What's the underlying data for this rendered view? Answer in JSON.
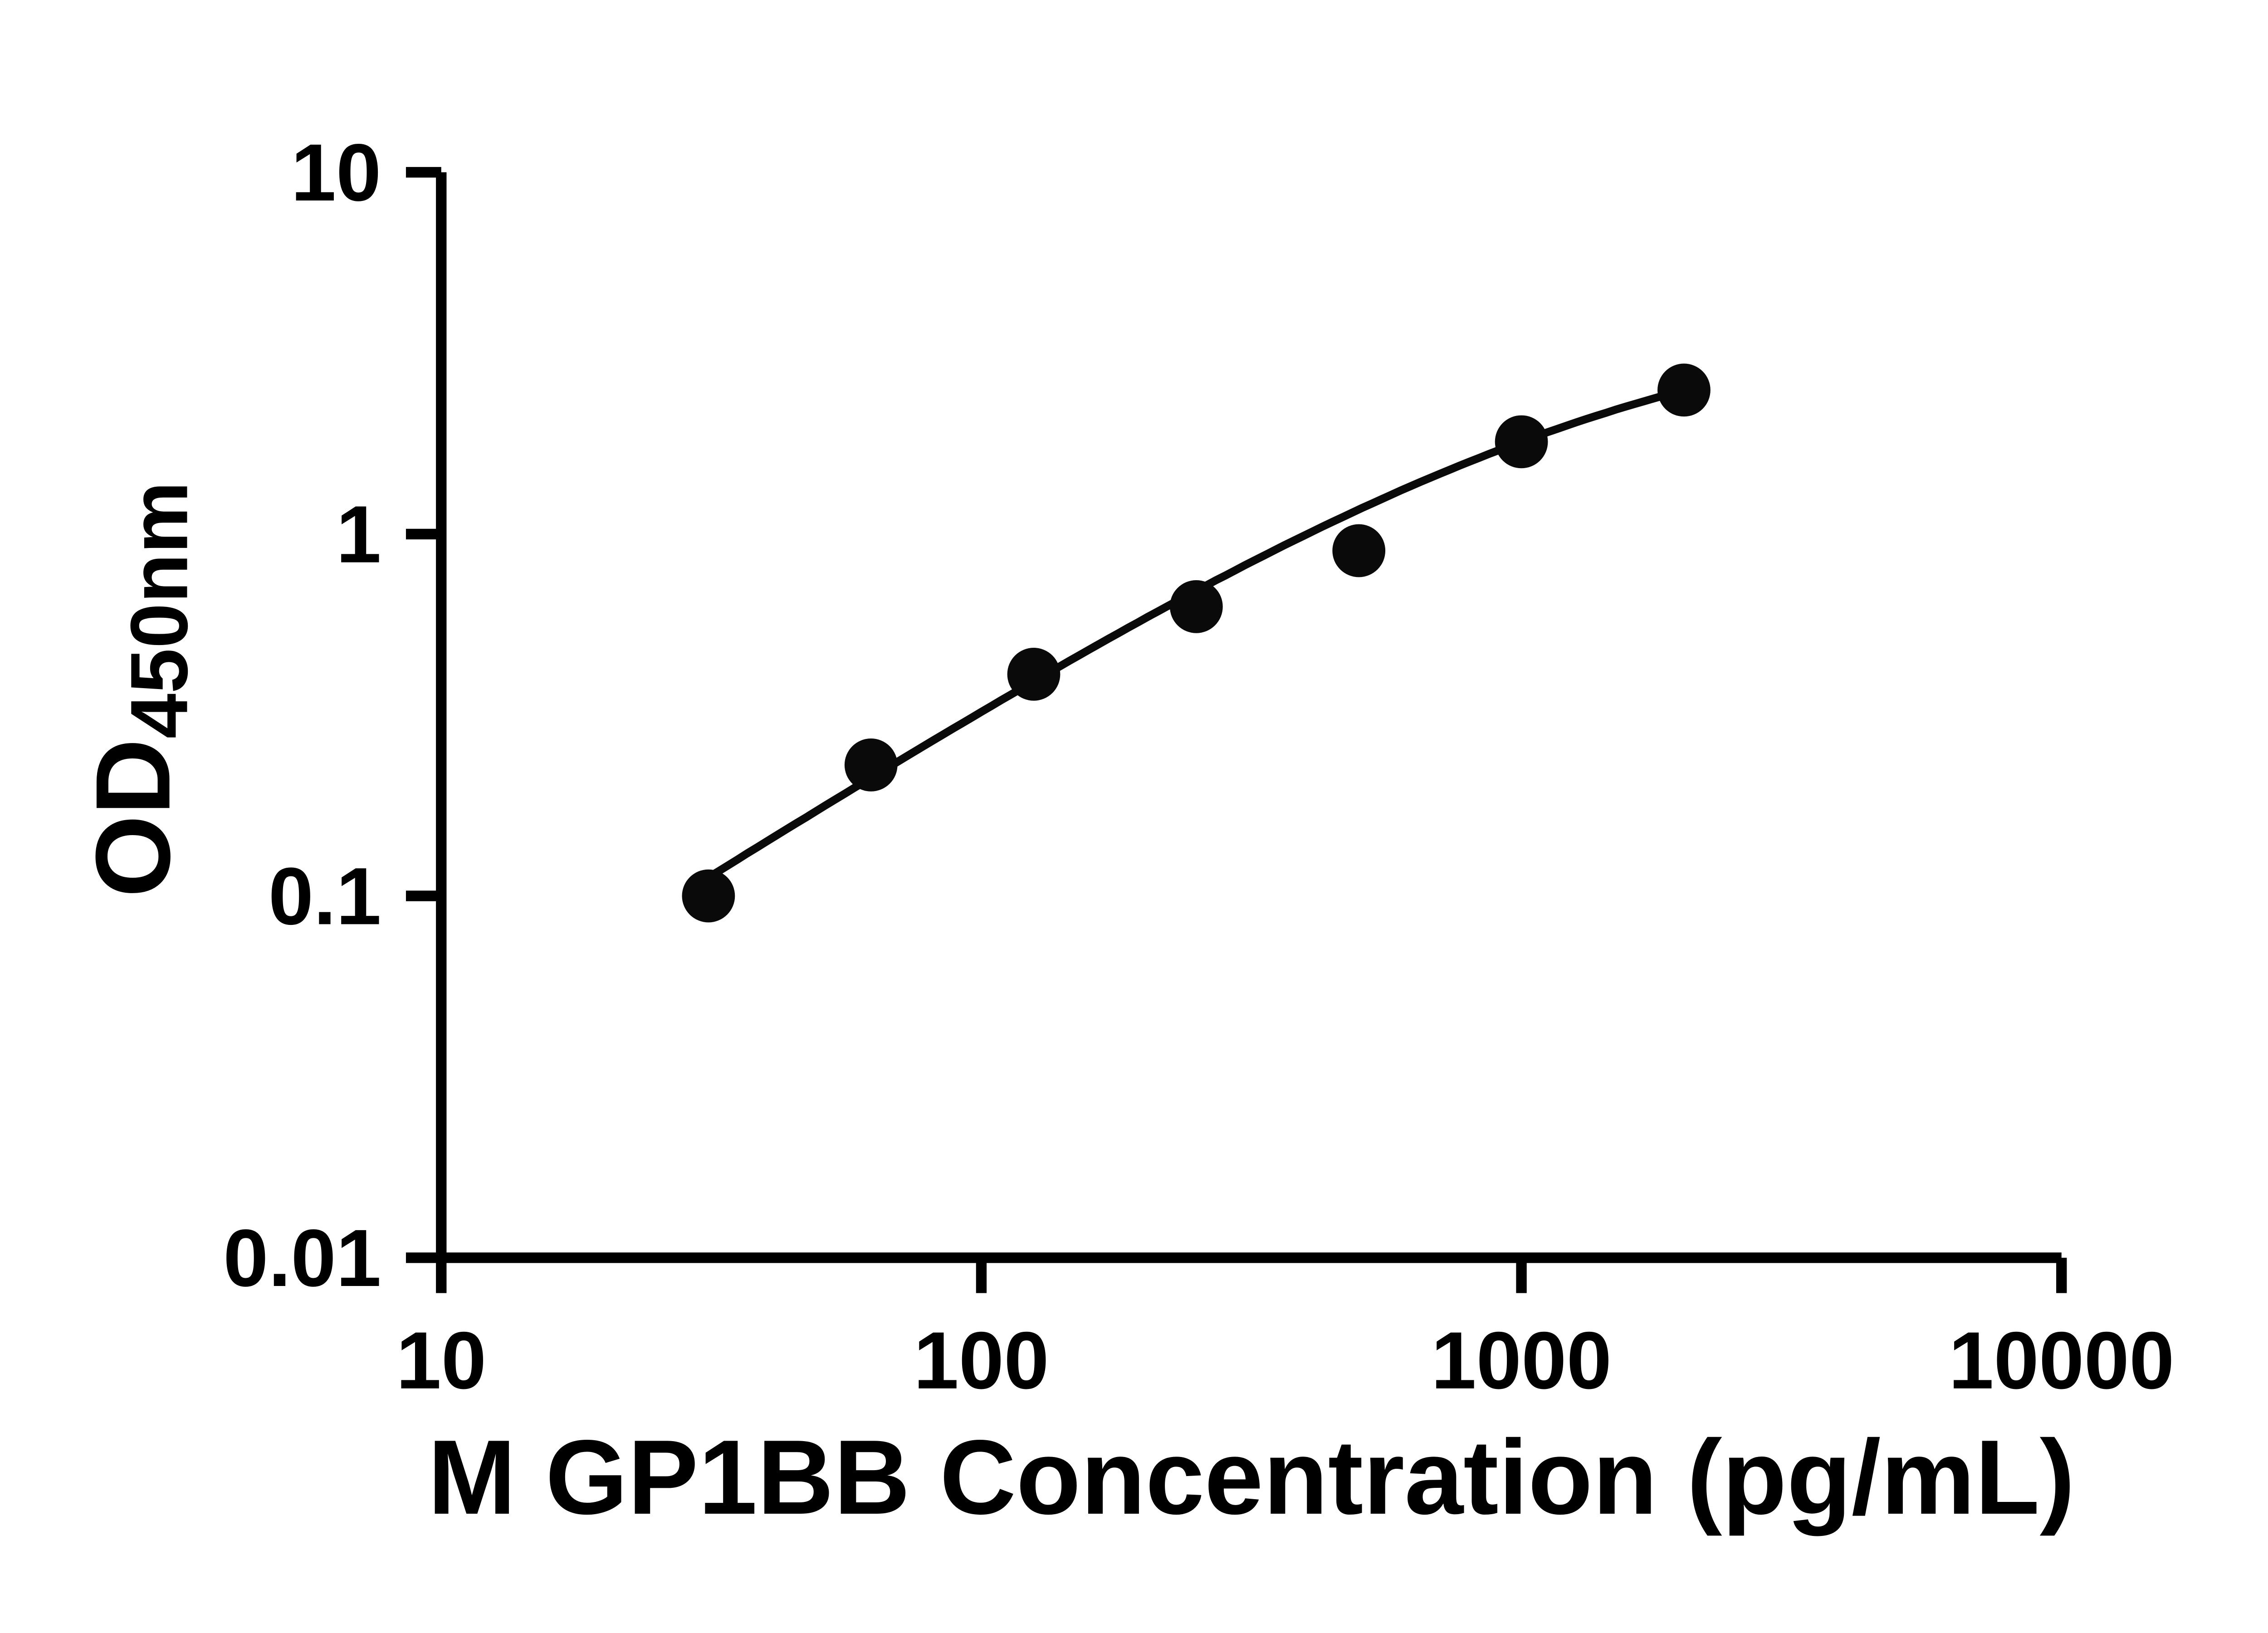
{
  "page": {
    "background": "#ffffff"
  },
  "chart_data": {
    "type": "scatter",
    "title": "",
    "xlabel": "M GP1BB Concentration (pg/mL)",
    "ylabel": "OD",
    "ylabel_subscript": "450nm",
    "x_scale": "log",
    "y_scale": "log",
    "xlim": [
      10,
      10000
    ],
    "ylim": [
      0.01,
      10
    ],
    "grid": false,
    "legend": null,
    "x_ticks": [
      10,
      100,
      1000,
      10000
    ],
    "x_tick_labels": [
      "10",
      "100",
      "1000",
      "10000"
    ],
    "y_ticks": [
      0.01,
      0.1,
      1,
      10
    ],
    "y_tick_labels": [
      "0.01",
      "0.1",
      "1",
      "10"
    ],
    "points": [
      {
        "x": 31.25,
        "y": 0.1
      },
      {
        "x": 62.5,
        "y": 0.23
      },
      {
        "x": 125,
        "y": 0.41
      },
      {
        "x": 250,
        "y": 0.63
      },
      {
        "x": 500,
        "y": 0.9
      },
      {
        "x": 1000,
        "y": 1.8
      },
      {
        "x": 2000,
        "y": 2.5
      }
    ],
    "curve_fit": {
      "model": "4PL",
      "a": 0,
      "d": 4.28,
      "c": 1400,
      "b": 0.95,
      "x_start": 31.25,
      "x_end": 2000
    },
    "colors": {
      "marker": "#0a0a0a",
      "line": "#0a0a0a",
      "axis": "#000000",
      "background": "#ffffff"
    }
  }
}
